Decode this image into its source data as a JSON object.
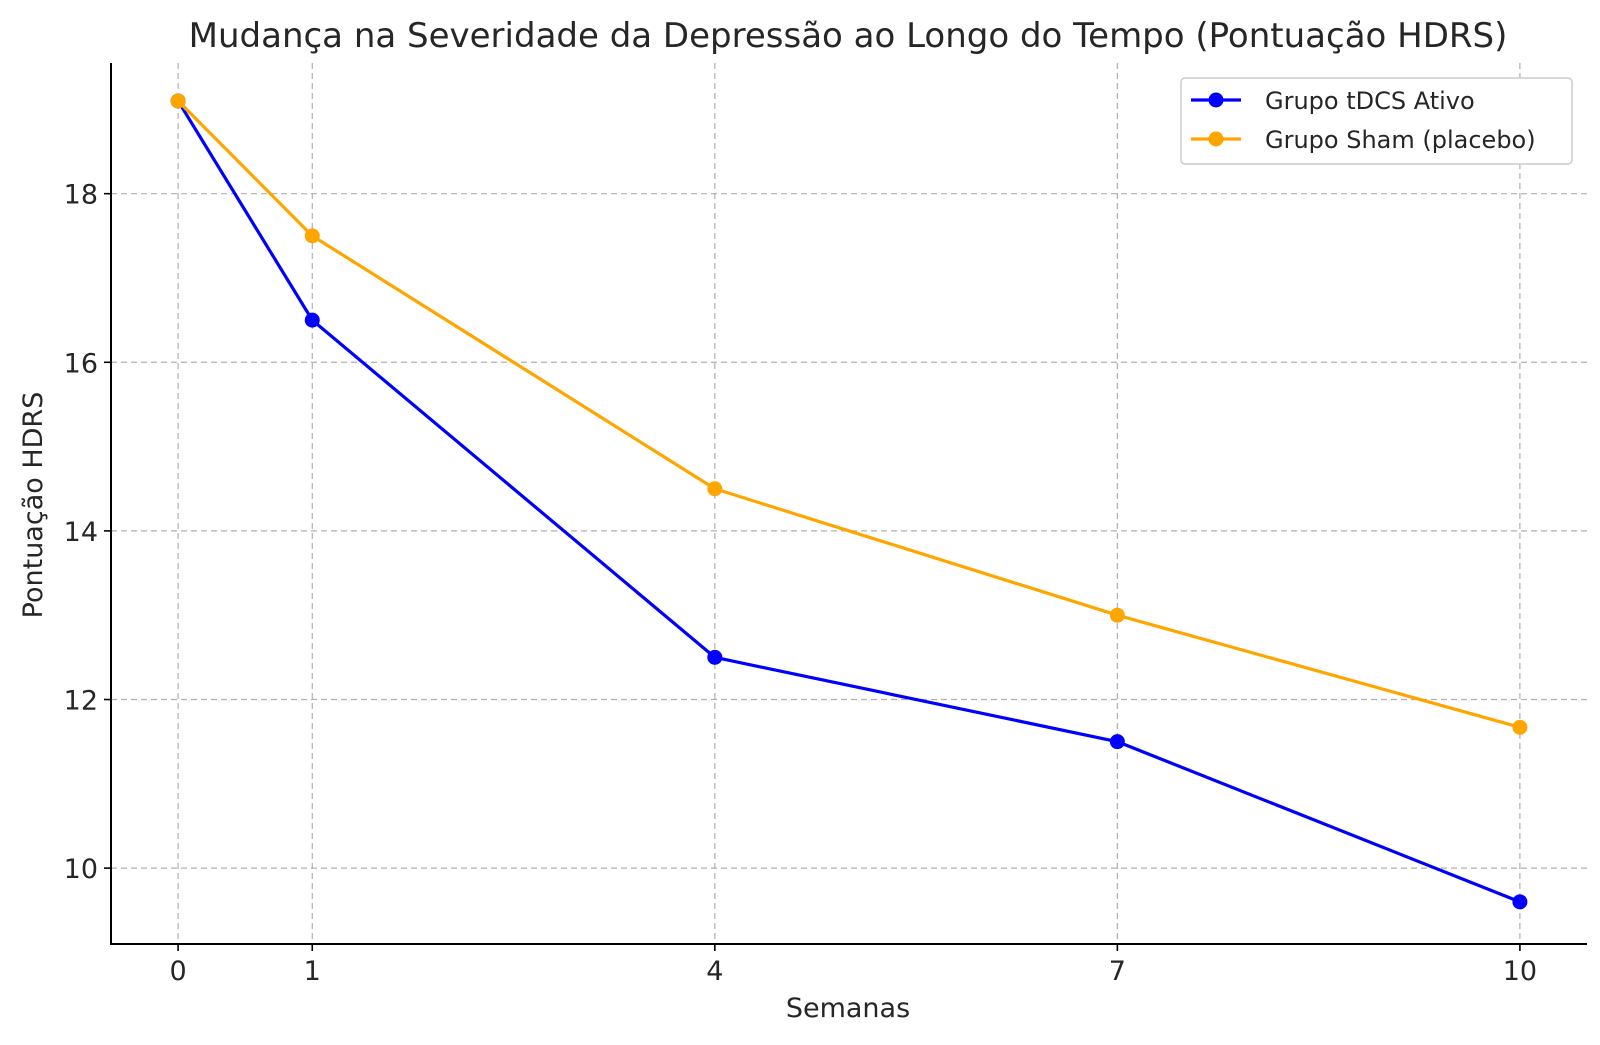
{
  "chart_data": {
    "type": "line",
    "title": "Mudança na Severidade da Depressão ao Longo do Tempo (Pontuação HDRS)",
    "xlabel": "Semanas",
    "ylabel": "Pontuação HDRS",
    "x": [
      0,
      1,
      4,
      7,
      10
    ],
    "xticks": [
      0,
      1,
      4,
      7,
      10
    ],
    "yticks": [
      10,
      12,
      14,
      16,
      18
    ],
    "xlim": [
      -0.5,
      10.5
    ],
    "ylim": [
      9.1,
      19.55
    ],
    "grid": true,
    "legend_position": "top-right",
    "series": [
      {
        "name": "Grupo tDCS Ativo",
        "values": [
          19.1,
          16.5,
          12.5,
          11.5,
          9.6
        ],
        "color": "#0000ff",
        "marker": "circle"
      },
      {
        "name": "Grupo Sham (placebo)",
        "values": [
          19.1,
          17.5,
          14.5,
          13.0,
          11.67
        ],
        "color": "#ffa500",
        "marker": "circle"
      }
    ]
  }
}
